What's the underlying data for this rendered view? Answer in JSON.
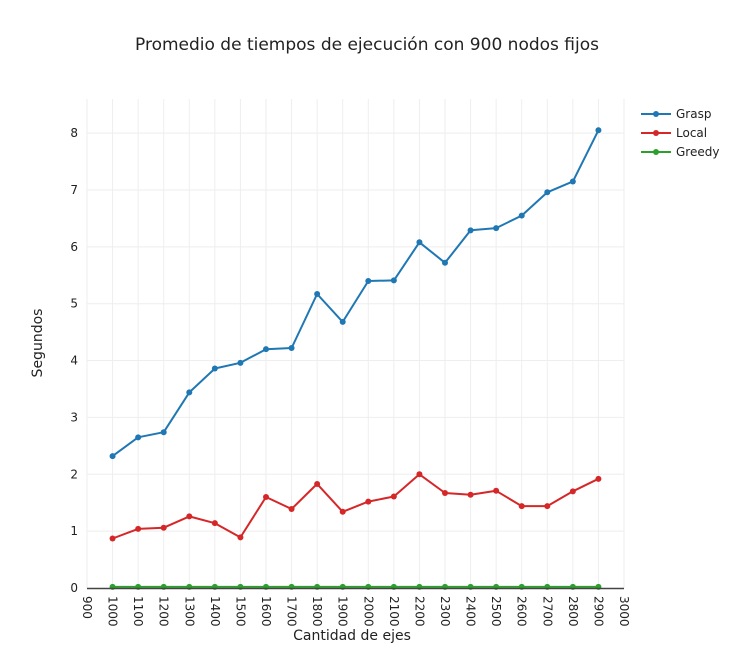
{
  "chart_data": {
    "type": "line",
    "title": "Promedio de tiempos de ejecución con 900 nodos fijos",
    "xlabel": "Cantidad de ejes",
    "ylabel": "Segundos",
    "xlim": [
      900,
      3000
    ],
    "ylim": [
      0,
      8.6
    ],
    "grid": true,
    "legend_position": "top-right",
    "x_ticks": [
      900,
      1000,
      1100,
      1200,
      1300,
      1400,
      1500,
      1600,
      1700,
      1800,
      1900,
      2000,
      2100,
      2200,
      2300,
      2400,
      2500,
      2600,
      2700,
      2800,
      2900,
      3000
    ],
    "y_ticks": [
      0,
      1,
      2,
      3,
      4,
      5,
      6,
      7,
      8
    ],
    "x": [
      1000,
      1100,
      1200,
      1300,
      1400,
      1500,
      1600,
      1700,
      1800,
      1900,
      2000,
      2100,
      2200,
      2300,
      2400,
      2500,
      2600,
      2700,
      2800,
      2900
    ],
    "series": [
      {
        "name": "Grasp",
        "color": "#1f77b4",
        "values": [
          2.32,
          2.65,
          2.74,
          3.44,
          3.86,
          3.96,
          4.2,
          4.22,
          5.17,
          4.68,
          5.4,
          5.41,
          6.08,
          5.72,
          6.29,
          6.33,
          6.55,
          6.96,
          7.15,
          8.05
        ]
      },
      {
        "name": "Local",
        "color": "#d62728",
        "values": [
          0.87,
          1.04,
          1.06,
          1.26,
          1.14,
          0.89,
          1.6,
          1.39,
          1.83,
          1.34,
          1.52,
          1.61,
          2.0,
          1.67,
          1.64,
          1.71,
          1.44,
          1.44,
          1.7,
          1.92
        ]
      },
      {
        "name": "Greedy",
        "color": "#2ca02c",
        "values": [
          0.02,
          0.02,
          0.02,
          0.02,
          0.02,
          0.02,
          0.02,
          0.02,
          0.02,
          0.02,
          0.02,
          0.02,
          0.02,
          0.02,
          0.02,
          0.02,
          0.02,
          0.02,
          0.02,
          0.02
        ]
      }
    ]
  }
}
